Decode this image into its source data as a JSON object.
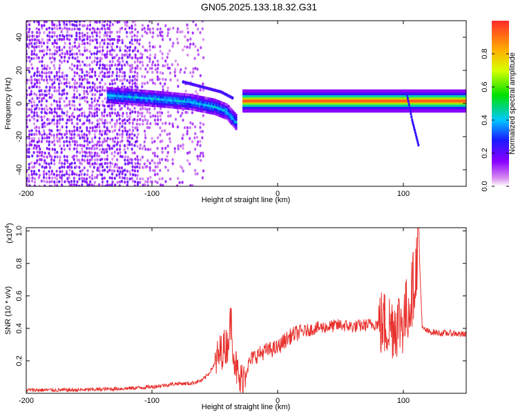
{
  "title": "GN05.2025.133.18.32.G31",
  "colors": {
    "snr_line": "#e8312d",
    "axis": "#000000"
  },
  "chart_data": [
    {
      "type": "heatmap",
      "title": "GN05.2025.133.18.32.G31",
      "xlabel": "Height of straight line (km)",
      "ylabel": "Frequency (Hz)",
      "xlim": [
        -200,
        150
      ],
      "ylim": [
        -50,
        50
      ],
      "x_ticks": [
        -200,
        -100,
        0,
        100
      ],
      "y_ticks": [
        -40,
        -20,
        0,
        20,
        40
      ],
      "colorbar": {
        "label": "Normalized spectral amplitude",
        "range": [
          0,
          1
        ],
        "ticks": [
          0.0,
          0.2,
          0.4,
          0.6,
          0.8
        ],
        "colormap": "rainbow (violet-blue-cyan-green-yellow-red)"
      },
      "features": [
        {
          "segment": "noise field",
          "x_range": [
            -200,
            -60
          ],
          "freq_range": [
            -50,
            50
          ],
          "amplitude": 0.15
        },
        {
          "segment": "ridge",
          "x": [
            -135,
            -100,
            -70,
            -50,
            -40,
            -32
          ],
          "freq": [
            5,
            3,
            1,
            -2,
            -5,
            -12
          ],
          "amplitude": 0.35
        },
        {
          "segment": "upper branch",
          "x": [
            -75,
            -60,
            -45,
            -35
          ],
          "freq": [
            13,
            10,
            7,
            3
          ],
          "amplitude": 0.2
        },
        {
          "segment": "steady tone",
          "x_range": [
            -28,
            150
          ],
          "freq": 1.5,
          "amplitude": 0.95
        },
        {
          "segment": "drop branch",
          "x": [
            103,
            107,
            112
          ],
          "freq": [
            5,
            -10,
            -25
          ],
          "amplitude": 0.25
        }
      ]
    },
    {
      "type": "line",
      "xlabel": "Height of straight line (km)",
      "ylabel": "SNR (10 * v/v)",
      "yscale_label": "(x10",
      "yscale_exp": "4",
      "xlim": [
        -200,
        150
      ],
      "ylim": [
        0,
        1.02
      ],
      "x_ticks": [
        -200,
        -100,
        0,
        100
      ],
      "y_ticks": [
        0.2,
        0.4,
        0.6,
        0.8,
        1.0
      ],
      "series": [
        {
          "x": [
            -200,
            -180,
            -160,
            -140,
            -120,
            -100,
            -90,
            -80,
            -70,
            -60,
            -55,
            -50,
            -45,
            -40,
            -37,
            -35,
            -32,
            -30,
            -25,
            -20,
            -15,
            -10,
            -5,
            0,
            5,
            10,
            15,
            20,
            30,
            40,
            50,
            60,
            70,
            80,
            90,
            100,
            105,
            110,
            112,
            115,
            120,
            130,
            140,
            150
          ],
          "y": [
            0.02,
            0.02,
            0.02,
            0.025,
            0.03,
            0.04,
            0.05,
            0.06,
            0.06,
            0.08,
            0.12,
            0.18,
            0.26,
            0.3,
            0.46,
            0.25,
            0.12,
            0.06,
            0.15,
            0.22,
            0.24,
            0.26,
            0.27,
            0.28,
            0.32,
            0.35,
            0.37,
            0.38,
            0.4,
            0.41,
            0.42,
            0.41,
            0.42,
            0.43,
            0.42,
            0.45,
            0.55,
            0.75,
            1.0,
            0.4,
            0.38,
            0.37,
            0.37,
            0.36
          ]
        }
      ]
    }
  ]
}
